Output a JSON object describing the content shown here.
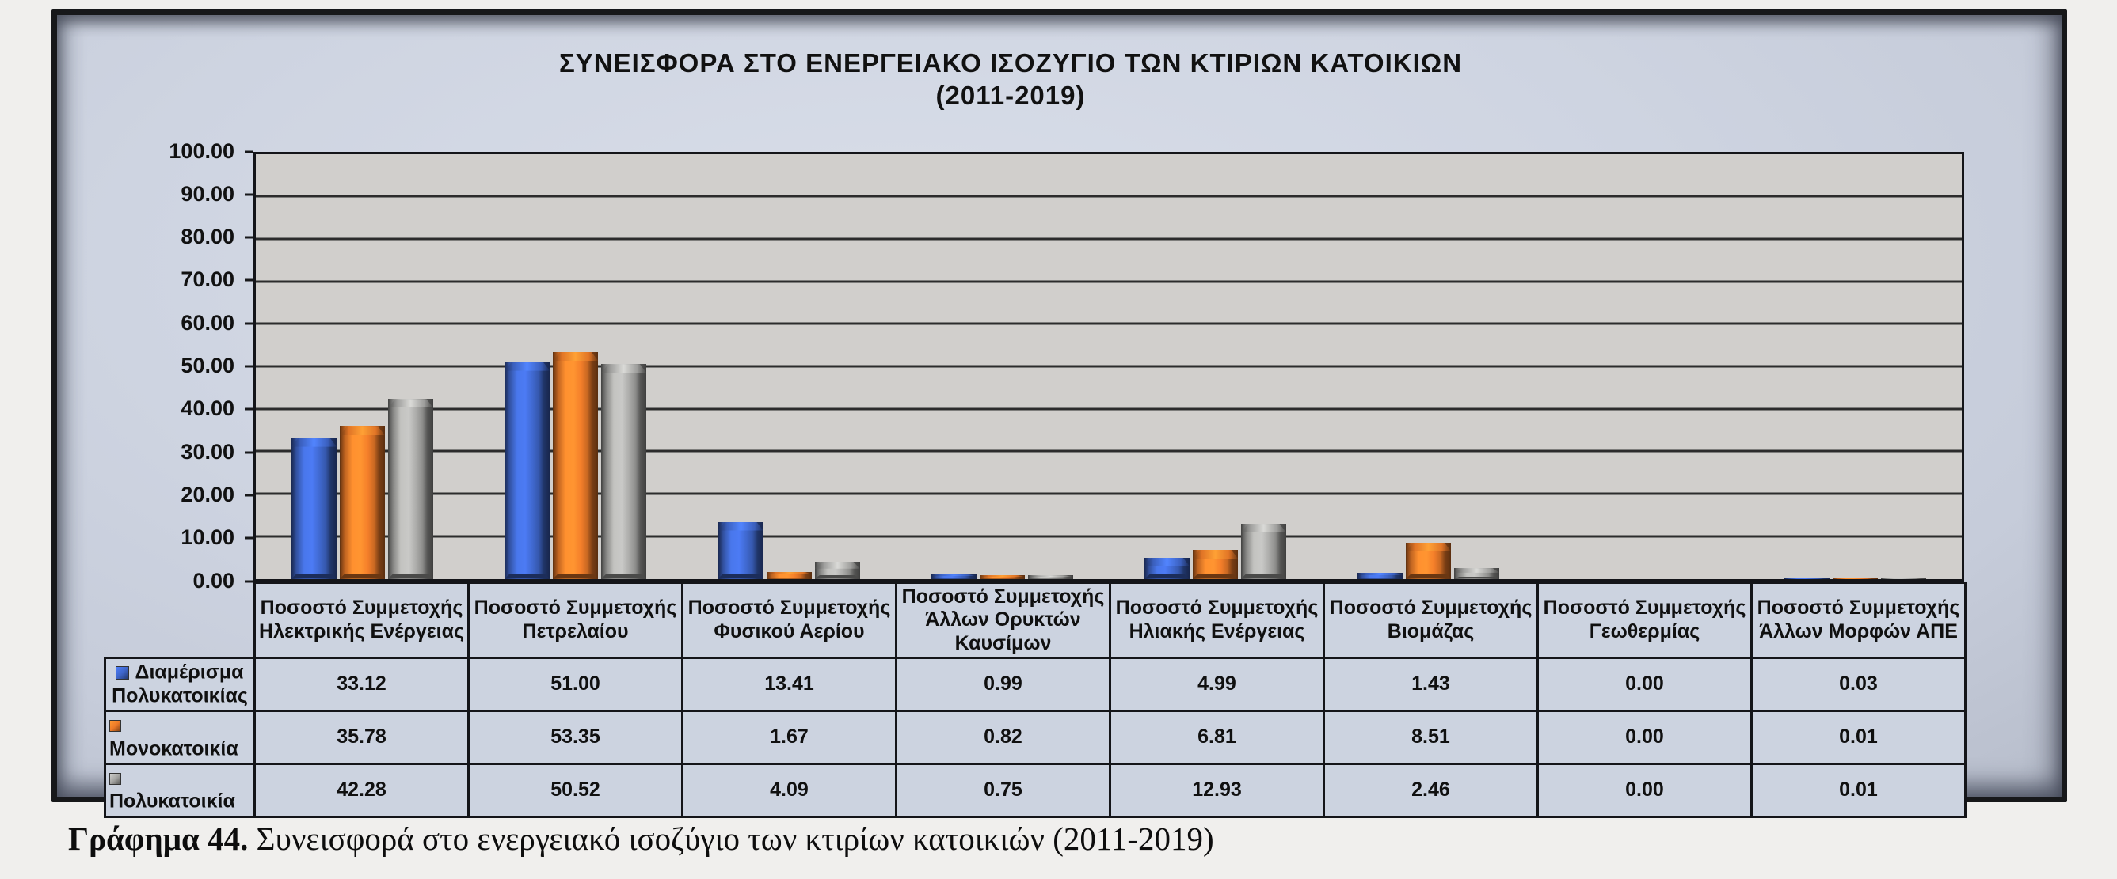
{
  "panel": {
    "background": "#CCD3E0",
    "border_color": "#17181A"
  },
  "chart_data": {
    "type": "bar",
    "title": "ΣΥΝΕΙΣΦΟΡΑ ΣΤΟ ΕΝΕΡΓΕΙΑΚΟ ΙΣΟΖΥΓΙΟ ΤΩΝ ΚΤΙΡΙΩΝ ΚΑΤΟΙΚΙΩΝ",
    "subtitle": "(2011-2019)",
    "categories": [
      "Ποσοστό Συμμετοχής Ηλεκτρικής Ενέργειας",
      "Ποσοστό Συμμετοχής Πετρελαίου",
      "Ποσοστό Συμμετοχής Φυσικού Αερίου",
      "Ποσοστό Συμμετοχής Άλλων Ορυκτών Καυσίμων",
      "Ποσοστό Συμμετοχής Ηλιακής Ενέργειας",
      "Ποσοστό Συμμετοχής Βιομάζας",
      "Ποσοστό Συμμετοχής Γεωθερμίας",
      "Ποσοστό Συμμετοχής Άλλων Μορφών ΑΠΕ"
    ],
    "series": [
      {
        "name": "Διαμέρισμα Πολυκατοικίας",
        "color": "#3E65C8",
        "values": [
          33.12,
          51.0,
          13.41,
          0.99,
          4.99,
          1.43,
          0.0,
          0.03
        ]
      },
      {
        "name": "Μονοκατοικία",
        "color": "#EC7A28",
        "values": [
          35.78,
          53.35,
          1.67,
          0.82,
          6.81,
          8.51,
          0.0,
          0.01
        ]
      },
      {
        "name": "Πολυκατοικία",
        "color": "#A5A5A3",
        "values": [
          42.28,
          50.52,
          4.09,
          0.75,
          12.93,
          2.46,
          0.0,
          0.01
        ]
      }
    ],
    "ylim": [
      0,
      100
    ],
    "ytick_step": 10,
    "value_decimals": 2,
    "grid": true,
    "plot_background": "#D1CFCC",
    "grid_color": "#2C2C2C",
    "legend_position": "table-row-headers"
  },
  "caption": {
    "label": "Γράφημα 44.",
    "text": " Συνεισφορά στο ενεργειακό ισοζύγιο των κτιρίων κατοικιών (2011-2019)"
  }
}
